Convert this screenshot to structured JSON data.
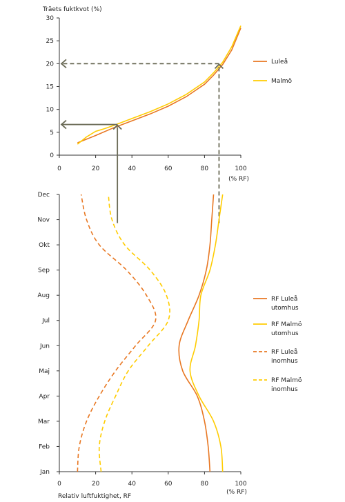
{
  "colors": {
    "lulea": "#e87722",
    "malmo": "#ffcc00",
    "arrow_solid": "#6b6b57",
    "arrow_dashed": "#6b6b57",
    "axis": "#333333"
  },
  "chart_data": [
    {
      "type": "line",
      "title": "Träets fuktkvot (%)",
      "xlabel": "(% RF)",
      "xlim": [
        0,
        100
      ],
      "ylim": [
        0,
        30
      ],
      "x_ticks": [
        "0",
        "20",
        "40",
        "60",
        "80",
        "100"
      ],
      "y_ticks": [
        "0",
        "5",
        "10",
        "15",
        "20",
        "25",
        "30"
      ],
      "legend_position": "right",
      "series": [
        {
          "name": "Luleå",
          "color": "#e87722",
          "x": [
            10,
            20,
            30,
            40,
            50,
            60,
            70,
            80,
            85,
            90,
            95,
            100
          ],
          "y": [
            2.7,
            4.3,
            6.0,
            7.5,
            9.0,
            10.7,
            12.8,
            15.5,
            17.5,
            19.8,
            23.0,
            27.8
          ]
        },
        {
          "name": "Malmö",
          "color": "#ffcc00",
          "x": [
            10,
            15,
            20,
            25,
            30,
            40,
            50,
            60,
            70,
            80,
            85,
            90,
            95,
            100
          ],
          "y": [
            2.4,
            4.0,
            5.2,
            5.8,
            6.5,
            8.0,
            9.5,
            11.2,
            13.3,
            16.0,
            18.0,
            20.3,
            23.7,
            28.3
          ]
        }
      ],
      "annotations": [
        {
          "style": "solid",
          "rf": 32,
          "moisture": 6.7
        },
        {
          "style": "dashed",
          "rf": 88,
          "moisture": 20
        }
      ]
    },
    {
      "type": "line",
      "xlabel": "Relativ luftfuktighet, RF",
      "xunit": "(% RF)",
      "xlim": [
        0,
        100
      ],
      "x_ticks": [
        "0",
        "20",
        "40",
        "60",
        "80",
        "100"
      ],
      "categories": [
        "Jan",
        "Feb",
        "Mar",
        "Apr",
        "Maj",
        "Jun",
        "Jul",
        "Aug",
        "Sep",
        "Okt",
        "Nov",
        "Dec"
      ],
      "legend_position": "right",
      "series": [
        {
          "name": "RF Luleå utomhus",
          "color": "#e87722",
          "style": "solid",
          "values": [
            83,
            82,
            80,
            76,
            68,
            66,
            71,
            77,
            81,
            83,
            84,
            85
          ]
        },
        {
          "name": "RF Malmö utomhus",
          "color": "#ffcc00",
          "style": "solid",
          "values": [
            90,
            89,
            85,
            77,
            72,
            75,
            77,
            78,
            83,
            86,
            88,
            90
          ]
        },
        {
          "name": "RF Luleå inomhus",
          "color": "#e87722",
          "style": "dashed",
          "values": [
            10,
            11,
            15,
            22,
            31,
            42,
            53,
            48,
            37,
            22,
            15,
            12
          ]
        },
        {
          "name": "RF Malmö inomhus",
          "color": "#ffcc00",
          "style": "dashed",
          "values": [
            23,
            22,
            25,
            31,
            38,
            49,
            60,
            59,
            50,
            36,
            29,
            27
          ]
        }
      ]
    }
  ]
}
